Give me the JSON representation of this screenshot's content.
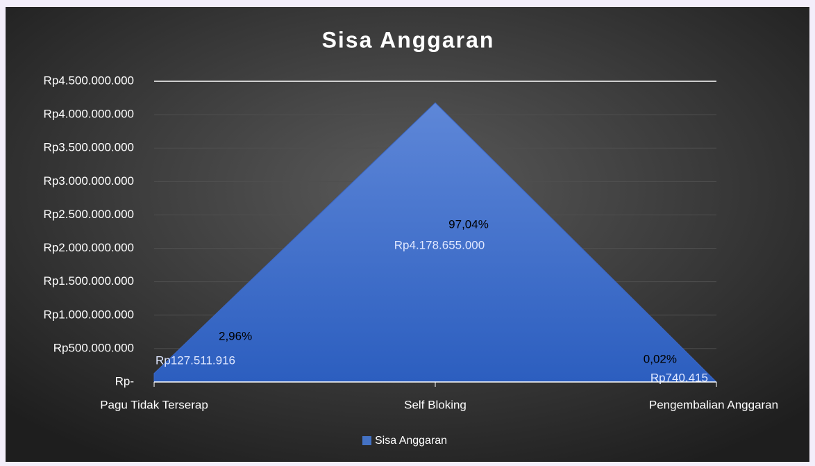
{
  "chart_data": {
    "type": "area",
    "title": "Sisa Anggaran",
    "categories": [
      "Pagu Tidak Terserap",
      "Self Bloking",
      "Pengembalian Anggaran"
    ],
    "series": [
      {
        "name": "Sisa Anggaran",
        "color": "#4472c4",
        "values": [
          127511916,
          4178655000,
          740415
        ],
        "value_labels": [
          "Rp127.511.916",
          "Rp4.178.655.000",
          "Rp740.415"
        ],
        "percentages": [
          2.96,
          97.04,
          0.02
        ],
        "percentage_labels": [
          "2,96%",
          "97,04%",
          "0,02%"
        ]
      }
    ],
    "ylim": [
      0,
      4500000000
    ],
    "yticks": [
      {
        "value": 0,
        "label": "Rp-"
      },
      {
        "value": 500000000,
        "label": "Rp500.000.000"
      },
      {
        "value": 1000000000,
        "label": "Rp1.000.000.000"
      },
      {
        "value": 1500000000,
        "label": "Rp1.500.000.000"
      },
      {
        "value": 2000000000,
        "label": "Rp2.000.000.000"
      },
      {
        "value": 2500000000,
        "label": "Rp2.500.000.000"
      },
      {
        "value": 3000000000,
        "label": "Rp3.000.000.000"
      },
      {
        "value": 3500000000,
        "label": "Rp3.500.000.000"
      },
      {
        "value": 4000000000,
        "label": "Rp4.000.000.000"
      },
      {
        "value": 4500000000,
        "label": "Rp4.500.000.000"
      }
    ],
    "grid": true,
    "legend": "bottom"
  }
}
